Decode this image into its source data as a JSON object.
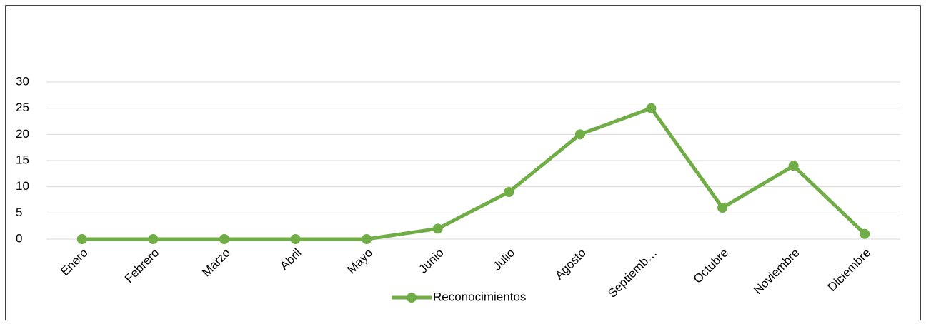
{
  "chart_data": {
    "type": "line",
    "categories": [
      "Enero",
      "Febrero",
      "Marzo",
      "Abril",
      "Mayo",
      "Junio",
      "Julio",
      "Agosto",
      "Septiemb…",
      "Octubre",
      "Noviembre",
      "Diciembre"
    ],
    "series": [
      {
        "name": "Reconocimientos",
        "color": "#70ad47",
        "values": [
          0,
          0,
          0,
          0,
          0,
          2,
          9,
          20,
          25,
          6,
          14,
          1
        ]
      }
    ],
    "ylim": [
      0,
      30
    ],
    "yticks": [
      0,
      5,
      10,
      15,
      20,
      25,
      30
    ],
    "grid": true,
    "legend": "bottom"
  }
}
